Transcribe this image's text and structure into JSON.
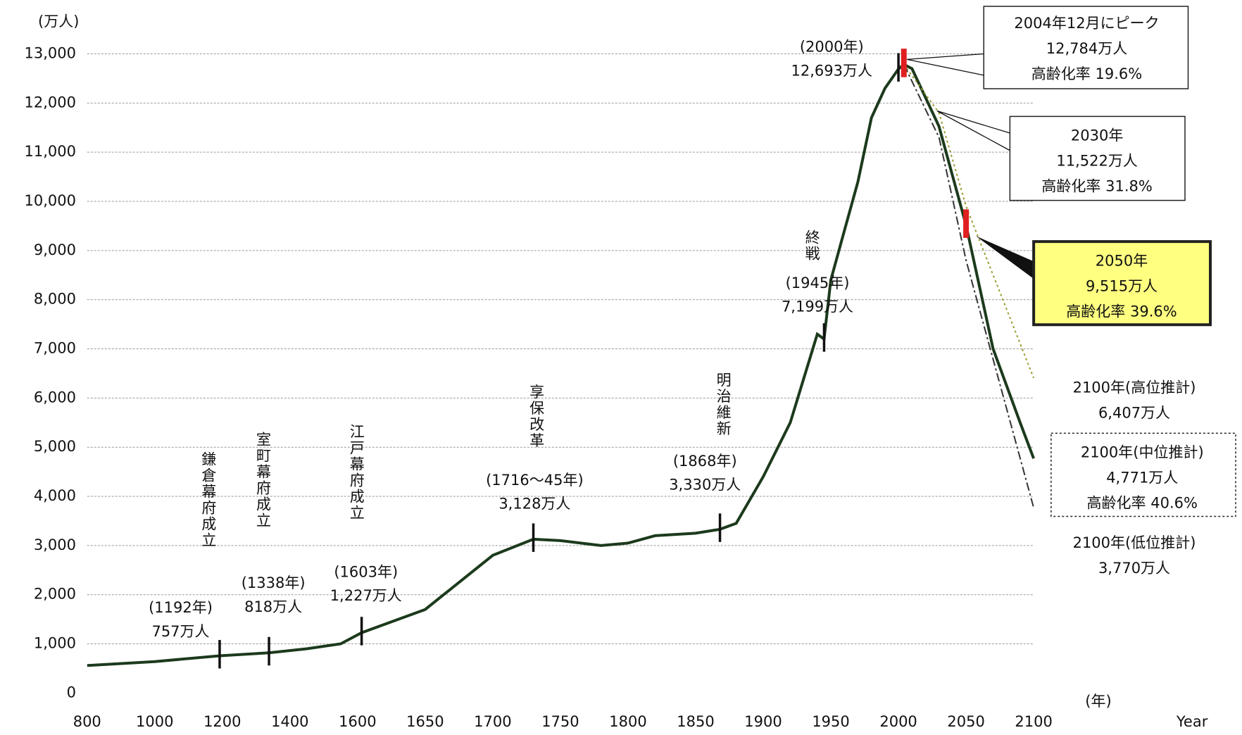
{
  "chart_data": {
    "type": "line",
    "y_unit": "(万人)",
    "x_unit": "(年)",
    "x_title": "Year",
    "xlim": [
      800,
      2100
    ],
    "xticks": [
      800,
      1000,
      1200,
      1400,
      1600,
      1650,
      1700,
      1750,
      1800,
      1850,
      1900,
      1950,
      2000,
      2050,
      2100
    ],
    "ylim": [
      0,
      13000
    ],
    "yticks": [
      0,
      {
        "value": 1000,
        "label": "1,000"
      },
      {
        "value": 2000,
        "label": "2,000"
      },
      {
        "value": 3000,
        "label": "3,000"
      },
      {
        "value": 4000,
        "label": "4,000"
      },
      {
        "value": 5000,
        "label": "5,000"
      },
      {
        "value": 6000,
        "label": "6,000"
      },
      {
        "value": 7000,
        "label": "7,000"
      },
      {
        "value": 8000,
        "label": "8,000"
      },
      {
        "value": 9000,
        "label": "9,000"
      },
      {
        "value": 10000,
        "label": "10,000"
      },
      {
        "value": 11000,
        "label": "11,000"
      },
      {
        "value": 12000,
        "label": "12,000"
      },
      {
        "value": 13000,
        "label": "13,000"
      }
    ],
    "grid": true,
    "series": [
      {
        "color": "#1c3a1c",
        "style": "solid",
        "x": [
          800,
          1000,
          1192,
          1338,
          1450,
          1550,
          1603,
          1650,
          1700,
          1730,
          1750,
          1780,
          1800,
          1820,
          1850,
          1868,
          1880,
          1900,
          1920,
          1940,
          1945,
          1950,
          1960,
          1970,
          1980,
          1990,
          2000,
          2004,
          2010,
          2030,
          2050,
          2070,
          2090,
          2100
        ],
        "values": [
          560,
          640,
          757,
          818,
          900,
          1000,
          1227,
          1700,
          2800,
          3128,
          3100,
          3000,
          3050,
          3200,
          3250,
          3330,
          3450,
          4400,
          5500,
          7300,
          7199,
          8400,
          9400,
          10400,
          11700,
          12300,
          12693,
          12784,
          12700,
          11522,
          9515,
          7000,
          5500,
          4771
        ]
      },
      {
        "color": "#9a9a30",
        "style": "dotted",
        "x": [
          2004,
          2030,
          2050,
          2100
        ],
        "values": [
          12784,
          11800,
          9900,
          6407
        ]
      },
      {
        "color": "#333333",
        "style": "dashdot",
        "x": [
          2004,
          2030,
          2050,
          2100
        ],
        "values": [
          12784,
          11300,
          8800,
          3770
        ]
      }
    ],
    "annotations": [
      {
        "lines": [
          "鎌倉幕府成立"
        ],
        "vertical": true
      },
      {
        "lines": [
          "(1192年)",
          "757万人"
        ]
      },
      {
        "lines": [
          "室町幕府成立"
        ],
        "vertical": true
      },
      {
        "lines": [
          "(1338年)",
          "818万人"
        ]
      },
      {
        "lines": [
          "江戸幕府成立"
        ],
        "vertical": true
      },
      {
        "lines": [
          "(1603年)",
          "1,227万人"
        ]
      },
      {
        "lines": [
          "享保改革"
        ],
        "vertical": true
      },
      {
        "lines": [
          "(1716～45年)",
          "3,128万人"
        ]
      },
      {
        "lines": [
          "明治維新"
        ],
        "vertical": true
      },
      {
        "lines": [
          "(1868年)",
          "3,330万人"
        ]
      },
      {
        "lines": [
          "終戦"
        ],
        "vertical": true
      },
      {
        "lines": [
          "(1945年)",
          "7,199万人"
        ]
      },
      {
        "lines": [
          "(2000年)",
          "12,693万人"
        ]
      },
      {
        "lines": [
          "2004年12月にピーク",
          "12,784万人"
        ],
        "rate": "高齢化率 19.6%"
      },
      {
        "lines": [
          "2030年",
          "11,522万人"
        ],
        "rate": "高齢化率 31.8%"
      },
      {
        "lines": [
          "2050年",
          "9,515万人"
        ],
        "rate": "高齢化率 39.6%"
      },
      {
        "lines": [
          "2100年(高位推計)",
          "6,407万人"
        ]
      },
      {
        "lines": [
          "2100年(中位推計)",
          "4,771万人"
        ],
        "rate": "高齢化率 40.6%"
      },
      {
        "lines": [
          "2100年(低位推計)",
          "3,770万人"
        ]
      }
    ]
  }
}
